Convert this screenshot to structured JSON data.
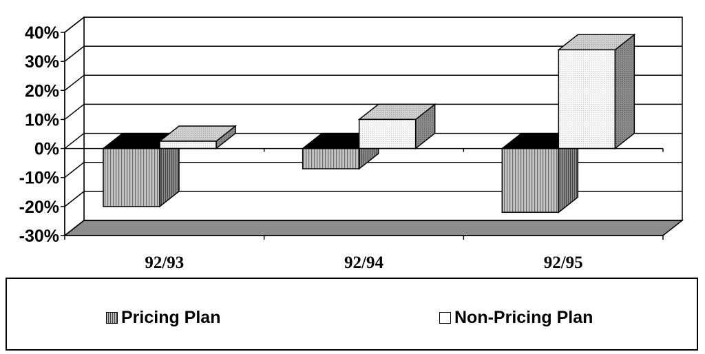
{
  "chart_data": {
    "type": "bar",
    "categories": [
      "92/93",
      "92/94",
      "92/95"
    ],
    "series": [
      {
        "name": "Pricing Plan",
        "values": [
          -20,
          -7,
          -22
        ]
      },
      {
        "name": "Non-Pricing Plan",
        "values": [
          2.5,
          10,
          34
        ]
      }
    ],
    "y_tick_labels": [
      "40%",
      "30%",
      "20%",
      "10%",
      "0%",
      "-10%",
      "-20%",
      "-30%"
    ],
    "y_ticks": [
      40,
      30,
      20,
      10,
      0,
      -10,
      -20,
      -30
    ],
    "ylim": [
      -30,
      40
    ],
    "grid": true,
    "three_d": true,
    "legend_position": "bottom",
    "colors": {
      "pricing_front": "#c4c4c4",
      "pricing_side": "#7a7a7a",
      "pricing_top": "#000000",
      "nonpricing_front": "#f4f4f4",
      "nonpricing_side": "#7f7f7f",
      "nonpricing_top": "#c8c8c8",
      "floor": "#8c8c8c"
    }
  },
  "legend": {
    "items": [
      {
        "label": "Pricing Plan",
        "swatch": "vertical-stripe"
      },
      {
        "label": "Non-Pricing Plan",
        "swatch": "light-dots"
      }
    ]
  }
}
